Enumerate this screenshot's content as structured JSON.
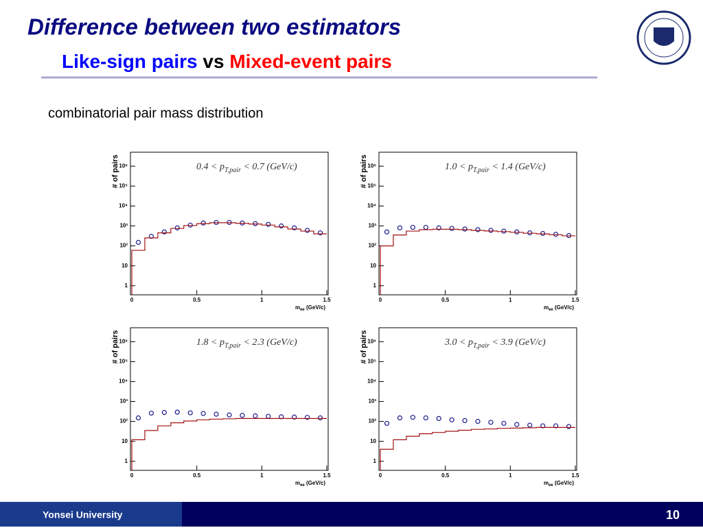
{
  "slide": {
    "title": "Difference between two estimators",
    "subtitle": [
      "Like-sign pairs",
      "vs",
      "Mixed-event pairs"
    ],
    "text": "combinatorial pair mass distribution",
    "footer": "Yonsei University",
    "page": "10"
  },
  "chart_data": [
    {
      "type": "step-points",
      "annotation": [
        "0.4 < p",
        "T,pair",
        " < 0.7 (GeV/c)"
      ],
      "ylabel": "# of pairs",
      "xlabel": [
        "m",
        "ee",
        " (GeV/c)"
      ],
      "x": [
        0.05,
        0.15,
        0.25,
        0.35,
        0.45,
        0.55,
        0.65,
        0.75,
        0.85,
        0.95,
        1.05,
        1.15,
        1.25,
        1.35,
        1.45
      ],
      "series": [
        {
          "style": "points",
          "color": "#1a1a8c",
          "values": [
            150,
            300,
            500,
            800,
            1100,
            1400,
            1500,
            1500,
            1400,
            1300,
            1200,
            1000,
            800,
            600,
            450
          ]
        },
        {
          "style": "step",
          "color": "#a01010",
          "values": [
            60,
            250,
            450,
            750,
            1050,
            1300,
            1450,
            1450,
            1350,
            1250,
            1100,
            900,
            700,
            550,
            400
          ]
        }
      ],
      "xlim": [
        0,
        1.5
      ],
      "xticks": [
        0,
        0.5,
        1,
        1.5
      ],
      "ylim": [
        0.35,
        5000000
      ],
      "log_y": true,
      "yticks": [
        1,
        10,
        {
          "value": 100,
          "label": "10²"
        },
        {
          "value": 1000,
          "label": "10³"
        },
        {
          "value": 10000,
          "label": "10⁴"
        },
        {
          "value": 100000,
          "label": "10⁵"
        },
        {
          "value": 1000000,
          "label": "10⁶"
        }
      ]
    },
    {
      "type": "step-points",
      "annotation": [
        "1.0 < p",
        "T,pair",
        " < 1.4 (GeV/c)"
      ],
      "ylabel": "# of pairs",
      "xlabel": [
        "m",
        "ee",
        " (GeV/c)"
      ],
      "x": [
        0.05,
        0.15,
        0.25,
        0.35,
        0.45,
        0.55,
        0.65,
        0.75,
        0.85,
        0.95,
        1.05,
        1.15,
        1.25,
        1.35,
        1.45
      ],
      "series": [
        {
          "style": "points",
          "color": "#1a1a8c",
          "values": [
            500,
            800,
            850,
            850,
            800,
            750,
            700,
            650,
            600,
            550,
            500,
            450,
            420,
            380,
            330
          ]
        },
        {
          "style": "step",
          "color": "#a01010",
          "values": [
            100,
            350,
            550,
            650,
            680,
            680,
            650,
            600,
            560,
            520,
            480,
            430,
            400,
            360,
            320
          ]
        }
      ],
      "xlim": [
        0,
        1.5
      ],
      "xticks": [
        0,
        0.5,
        1,
        1.5
      ],
      "ylim": [
        0.35,
        5000000
      ],
      "log_y": true,
      "yticks": [
        1,
        10,
        {
          "value": 100,
          "label": "10²"
        },
        {
          "value": 1000,
          "label": "10³"
        },
        {
          "value": 10000,
          "label": "10⁴"
        },
        {
          "value": 100000,
          "label": "10⁵"
        },
        {
          "value": 1000000,
          "label": "10⁶"
        }
      ]
    },
    {
      "type": "step-points",
      "annotation": [
        "1.8 < p",
        "T,pair",
        " < 2.3 (GeV/c)"
      ],
      "ylabel": "# of pairs",
      "xlabel": [
        "m",
        "ee",
        " (GeV/c)"
      ],
      "x": [
        0.05,
        0.15,
        0.25,
        0.35,
        0.45,
        0.55,
        0.65,
        0.75,
        0.85,
        0.95,
        1.05,
        1.15,
        1.25,
        1.35,
        1.45
      ],
      "series": [
        {
          "style": "points",
          "color": "#1a1a8c",
          "values": [
            150,
            260,
            280,
            290,
            270,
            250,
            230,
            210,
            200,
            190,
            180,
            170,
            165,
            160,
            150
          ]
        },
        {
          "style": "step",
          "color": "#a01010",
          "values": [
            12,
            35,
            60,
            85,
            105,
            120,
            130,
            135,
            140,
            140,
            140,
            140,
            140,
            140,
            140
          ]
        }
      ],
      "xlim": [
        0,
        1.5
      ],
      "xticks": [
        0,
        0.5,
        1,
        1.5
      ],
      "ylim": [
        0.35,
        5000000
      ],
      "log_y": true,
      "yticks": [
        1,
        10,
        {
          "value": 100,
          "label": "10²"
        },
        {
          "value": 1000,
          "label": "10³"
        },
        {
          "value": 10000,
          "label": "10⁴"
        },
        {
          "value": 100000,
          "label": "10⁵"
        },
        {
          "value": 1000000,
          "label": "10⁶"
        }
      ]
    },
    {
      "type": "step-points",
      "annotation": [
        "3.0 < p",
        "T,pair",
        " < 3.9 (GeV/c)"
      ],
      "ylabel": "# of pairs",
      "xlabel": [
        "m",
        "ee",
        " (GeV/c)"
      ],
      "x": [
        0.05,
        0.15,
        0.25,
        0.35,
        0.45,
        0.55,
        0.65,
        0.75,
        0.85,
        0.95,
        1.05,
        1.15,
        1.25,
        1.35,
        1.45
      ],
      "series": [
        {
          "style": "points",
          "color": "#1a1a8c",
          "values": [
            80,
            150,
            160,
            150,
            140,
            120,
            110,
            100,
            90,
            80,
            70,
            65,
            60,
            60,
            55
          ]
        },
        {
          "style": "step",
          "color": "#a01010",
          "values": [
            4,
            12,
            18,
            24,
            28,
            32,
            36,
            40,
            42,
            45,
            46,
            48,
            50,
            50,
            50
          ]
        }
      ],
      "xlim": [
        0,
        1.5
      ],
      "xticks": [
        0,
        0.5,
        1,
        1.5
      ],
      "ylim": [
        0.35,
        5000000
      ],
      "log_y": true,
      "yticks": [
        1,
        10,
        {
          "value": 100,
          "label": "10²"
        },
        {
          "value": 1000,
          "label": "10³"
        },
        {
          "value": 10000,
          "label": "10⁴"
        },
        {
          "value": 100000,
          "label": "10⁵"
        },
        {
          "value": 1000000,
          "label": "10⁶"
        }
      ]
    }
  ]
}
